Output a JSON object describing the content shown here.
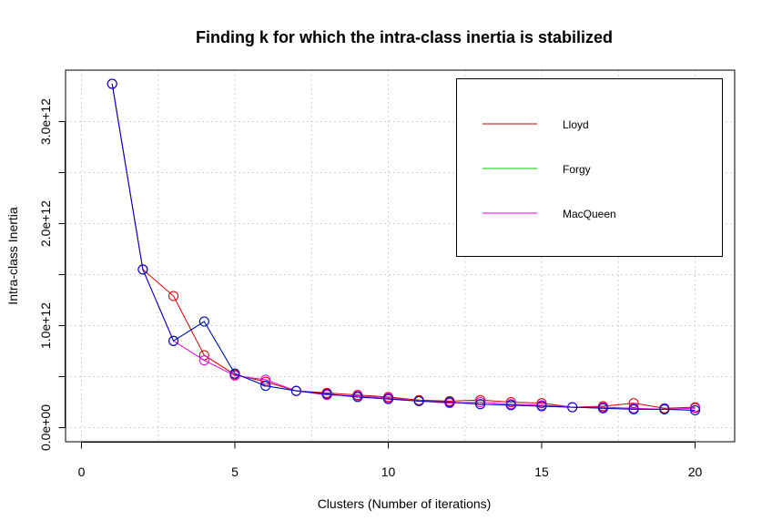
{
  "chart_data": {
    "type": "line",
    "title": "Finding k for which the intra-class inertia is stabilized",
    "xlabel": "Clusters (Number of iterations)",
    "ylabel": "Intra-class Inertia",
    "xlim": [
      0,
      21
    ],
    "ylim": [
      -130000000000.0,
      3400000000000.0
    ],
    "x_ticks": [
      0,
      5,
      10,
      15,
      20
    ],
    "x_tick_labels": [
      "0",
      "5",
      "10",
      "15",
      "20"
    ],
    "y_ticks": [
      0,
      1000000000000.0,
      2000000000000.0,
      3000000000000.0
    ],
    "y_tick_labels": [
      "0.0e+00",
      "1.0e+12",
      "2.0e+12",
      "3.0e+12"
    ],
    "grid": true,
    "legend_position": "top-right",
    "x": [
      1,
      2,
      3,
      4,
      5,
      6,
      7,
      8,
      9,
      10,
      11,
      12,
      13,
      14,
      15,
      16,
      17,
      18,
      19,
      20
    ],
    "series": [
      {
        "name": "Lloyd",
        "color": "#d00000",
        "values": [
          3370000000000.0,
          1550000000000.0,
          1290000000000.0,
          710000000000.0,
          520000000000.0,
          450000000000.0,
          360000000000.0,
          340000000000.0,
          320000000000.0,
          300000000000.0,
          270000000000.0,
          260000000000.0,
          270000000000.0,
          250000000000.0,
          240000000000.0,
          200000000000.0,
          210000000000.0,
          240000000000.0,
          190000000000.0,
          200000000000.0
        ]
      },
      {
        "name": "Forgy",
        "color": "#00cc00",
        "values": [
          3370000000000.0,
          1550000000000.0,
          850000000000.0,
          1040000000000.0,
          530000000000.0,
          410000000000.0,
          360000000000.0,
          330000000000.0,
          300000000000.0,
          280000000000.0,
          260000000000.0,
          250000000000.0,
          230000000000.0,
          220000000000.0,
          210000000000.0,
          200000000000.0,
          190000000000.0,
          180000000000.0,
          180000000000.0,
          170000000000.0
        ]
      },
      {
        "name": "MacQueen",
        "color": "#e000e0",
        "values": [
          3370000000000.0,
          1550000000000.0,
          850000000000.0,
          660000000000.0,
          510000000000.0,
          470000000000.0,
          360000000000.0,
          320000000000.0,
          310000000000.0,
          290000000000.0,
          260000000000.0,
          240000000000.0,
          250000000000.0,
          230000000000.0,
          220000000000.0,
          200000000000.0,
          200000000000.0,
          190000000000.0,
          180000000000.0,
          190000000000.0
        ]
      },
      {
        "color": "#0000cc",
        "values": [
          3370000000000.0,
          1550000000000.0,
          850000000000.0,
          1040000000000.0,
          530000000000.0,
          410000000000.0,
          360000000000.0,
          330000000000.0,
          300000000000.0,
          280000000000.0,
          260000000000.0,
          250000000000.0,
          230000000000.0,
          220000000000.0,
          210000000000.0,
          200000000000.0,
          190000000000.0,
          180000000000.0,
          180000000000.0,
          170000000000.0
        ]
      }
    ]
  }
}
